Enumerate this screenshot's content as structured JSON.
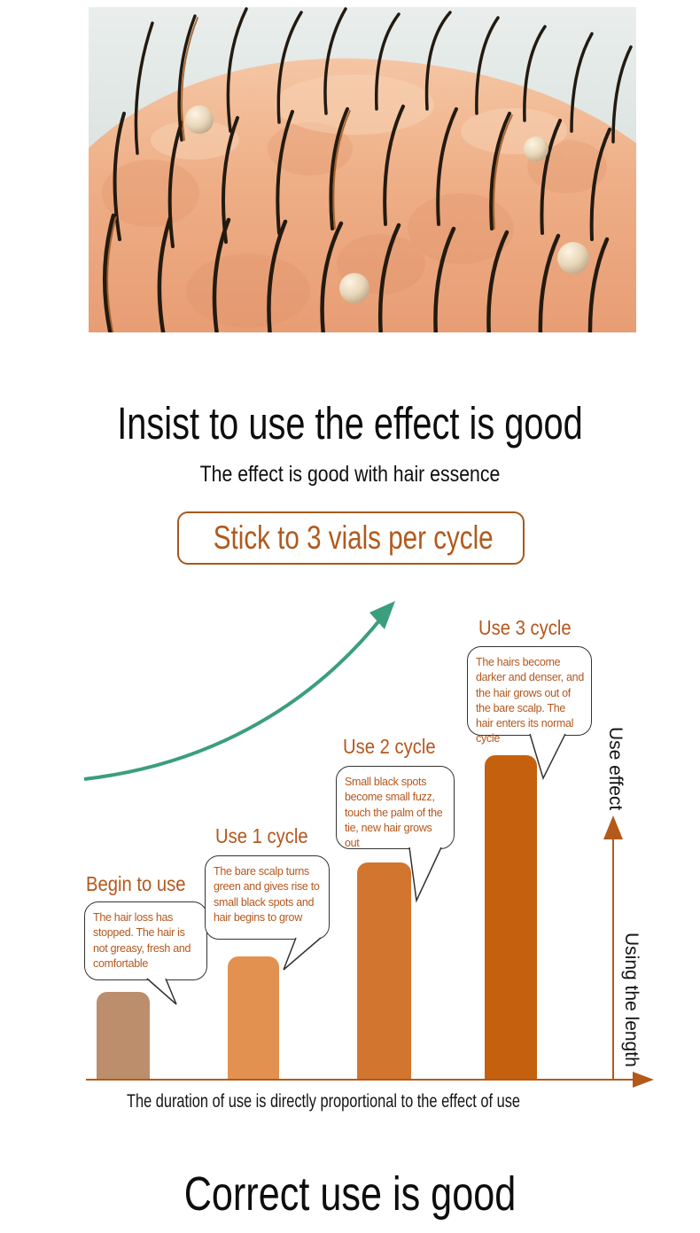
{
  "hero": {
    "name": "scalp-hair-growth-illustration"
  },
  "headline": {
    "title": "Insist to use the effect is good",
    "subtitle": "The effect is good with hair essence",
    "badge": "Stick to 3 vials per cycle"
  },
  "chart_data": {
    "type": "bar",
    "categories": [
      "Begin to use",
      "Use 1 cycle",
      "Use 2 cycle",
      "Use 3 cycle"
    ],
    "values": [
      27,
      38,
      67,
      100
    ],
    "value_note": "relative bar heights, no numeric axis shown",
    "ylabel": "Use effect",
    "xlabel": "Using the length",
    "caption": "The duration of use is directly proportional to the effect of use",
    "bar_colors": [
      "#bc8e6c",
      "#e29150",
      "#d2752f",
      "#c5600f"
    ],
    "trend_arrow_color": "#3b9e7c",
    "axis_color": "#b35a1a",
    "grid": false,
    "legend": "none",
    "annotations": [
      {
        "label": "Begin to use",
        "bubble": "The hair loss has stopped. The hair is not greasy, fresh and comfortable"
      },
      {
        "label": "Use 1 cycle",
        "bubble": "The bare scalp turns green and gives rise to small black spots and hair begins to grow"
      },
      {
        "label": "Use 2 cycle",
        "bubble": "Small black spots become small fuzz, touch the palm of the tie, new hair grows out"
      },
      {
        "label": "Use 3 cycle",
        "bubble": "The hairs become darker and denser, and the hair grows out of the bare scalp. The hair enters its normal cycle"
      }
    ]
  },
  "footer": {
    "title": "Correct use is good"
  },
  "colors": {
    "accent_text": "#b4571d",
    "badge_border": "#a8581b",
    "title_text": "#0e0e0e"
  }
}
